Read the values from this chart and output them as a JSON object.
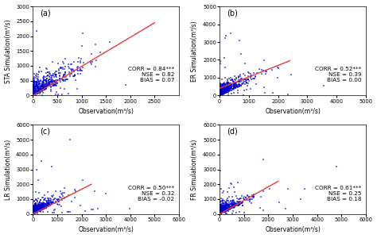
{
  "subplots": [
    {
      "label": "(a)",
      "ylabel": "STA Simulation(m³/s)",
      "xlabel": "Observation(m³/s)",
      "xlim": [
        0,
        3000
      ],
      "ylim": [
        0,
        3000
      ],
      "xticks": [
        0,
        500,
        1000,
        1500,
        2000,
        2500
      ],
      "yticks": [
        0,
        500,
        1000,
        1500,
        2000,
        2500,
        3000
      ],
      "corr": "0.84***",
      "nse": "0.82",
      "bias": "0.07",
      "trend_x": [
        0,
        2500
      ],
      "trend_y": [
        0,
        2450
      ],
      "scale": 280,
      "n_points": 500,
      "seed": 42,
      "outlier_scale": 1200,
      "n_outliers": 40
    },
    {
      "label": "(b)",
      "ylabel": "ER Simulation(m³/s)",
      "xlabel": "Observation(m³/s)",
      "xlim": [
        0,
        5000
      ],
      "ylim": [
        0,
        5000
      ],
      "xticks": [
        0,
        1000,
        2000,
        3000,
        4000,
        5000
      ],
      "yticks": [
        0,
        1000,
        2000,
        3000,
        4000,
        5000
      ],
      "corr": "0.52***",
      "nse": "0.39",
      "bias": "0.00",
      "trend_x": [
        0,
        2400
      ],
      "trend_y": [
        400,
        1950
      ],
      "scale": 300,
      "n_points": 500,
      "seed": 43,
      "outlier_scale": 2000,
      "n_outliers": 50
    },
    {
      "label": "(c)",
      "ylabel": "LR Simulation(m³/s)",
      "xlabel": "Observation(m³/s)",
      "xlim": [
        0,
        6000
      ],
      "ylim": [
        0,
        6000
      ],
      "xticks": [
        0,
        1000,
        2000,
        3000,
        4000,
        5000,
        6000
      ],
      "yticks": [
        0,
        1000,
        2000,
        3000,
        4000,
        5000,
        6000
      ],
      "corr": "0.50***",
      "nse": "0.32",
      "bias": "-0.02",
      "trend_x": [
        0,
        2400
      ],
      "trend_y": [
        0,
        2000
      ],
      "scale": 300,
      "n_points": 500,
      "seed": 44,
      "outlier_scale": 2200,
      "n_outliers": 60
    },
    {
      "label": "(d)",
      "ylabel": "FR Simulation(m³/s)",
      "xlabel": "Observation(m³/s)",
      "xlim": [
        0,
        6000
      ],
      "ylim": [
        0,
        6000
      ],
      "xticks": [
        0,
        1000,
        2000,
        3000,
        4000,
        5000,
        6000
      ],
      "yticks": [
        0,
        1000,
        2000,
        3000,
        4000,
        5000,
        6000
      ],
      "corr": "0.61***",
      "nse": "0.25",
      "bias": "0.18",
      "trend_x": [
        0,
        2400
      ],
      "trend_y": [
        0,
        2200
      ],
      "scale": 300,
      "n_points": 500,
      "seed": 45,
      "outlier_scale": 2200,
      "n_outliers": 55
    }
  ],
  "dot_color": "#0000cd",
  "line_color": "#e8393a",
  "dot_size": 2.5,
  "dot_alpha": 0.55,
  "dot_marker": "s",
  "stats_fontsize": 5.2,
  "label_fontsize": 7.0,
  "axis_label_fontsize": 5.5,
  "tick_fontsize": 4.8
}
